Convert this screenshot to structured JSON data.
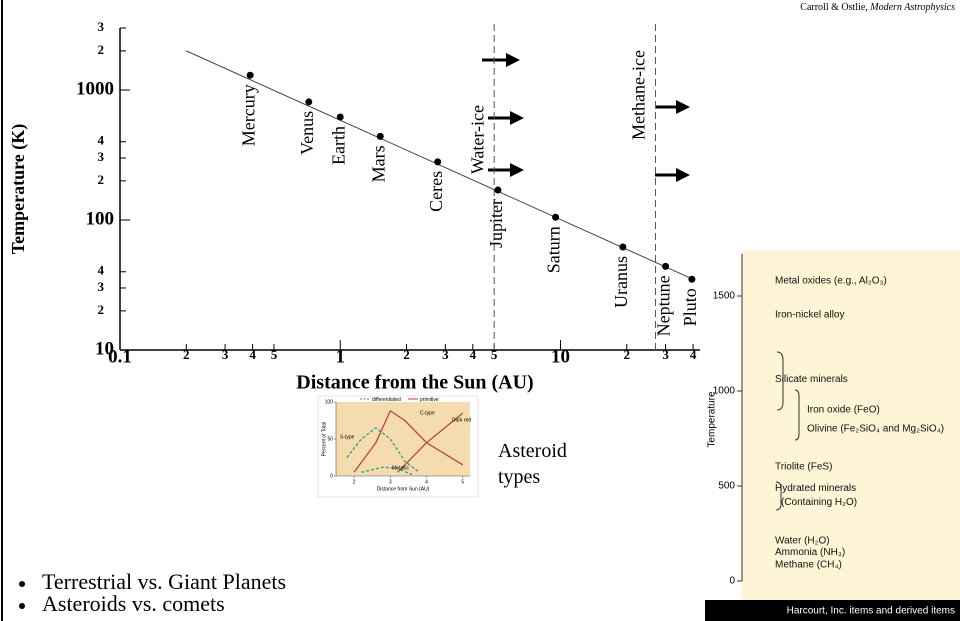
{
  "credit": {
    "authors": "Carroll & Ostlie,",
    "book": "Modern Astrophysics"
  },
  "chart_data": [
    {
      "type": "scatter",
      "x_label": "Distance from the Sun (AU)",
      "y_label": "Temperature (K)",
      "log_x": true,
      "log_y": true,
      "xlim": [
        0.1,
        43
      ],
      "ylim": [
        10,
        3000
      ],
      "xticks": [
        0.1,
        {
          "value": 0.2,
          "label": "2"
        },
        {
          "value": 0.3,
          "label": "3"
        },
        {
          "value": 0.4,
          "label": "4"
        },
        {
          "value": 0.5,
          "label": "5"
        },
        1,
        {
          "value": 2,
          "label": "2"
        },
        {
          "value": 3,
          "label": "3"
        },
        {
          "value": 4,
          "label": "4"
        },
        {
          "value": 5,
          "label": "5"
        },
        10,
        {
          "value": 20,
          "label": "2"
        },
        {
          "value": 30,
          "label": "3"
        },
        {
          "value": 40,
          "label": "4"
        }
      ],
      "yticks": [
        10,
        {
          "value": 20,
          "label": "2"
        },
        {
          "value": 30,
          "label": "3"
        },
        {
          "value": 40,
          "label": "4"
        },
        100,
        {
          "value": 200,
          "label": "2"
        },
        {
          "value": 300,
          "label": "3"
        },
        {
          "value": 400,
          "label": "4"
        },
        1000,
        {
          "value": 2000,
          "label": "2"
        },
        {
          "value": 3000,
          "label": "3"
        }
      ],
      "x": [
        0.39,
        0.72,
        1,
        1.52,
        2.77,
        5.2,
        9.5,
        19.2,
        30,
        39.5
      ],
      "values": [
        1300,
        810,
        620,
        440,
        280,
        170,
        105,
        62,
        44,
        35
      ],
      "point_labels": [
        "Mercury",
        "Venus",
        "Earth",
        "Mars",
        "Ceres",
        "Jupiter",
        "Saturn",
        "Uranus",
        "Neptune",
        "Pluto"
      ],
      "color": "#000000",
      "fit": {
        "x": [
          0.2,
          40
        ],
        "values": [
          2000,
          35
        ]
      },
      "boundaries": [
        {
          "label": "Water-ice",
          "x": 5
        },
        {
          "label": "Methane-ice",
          "x": 27
        }
      ]
    },
    {
      "type": "line",
      "x_label": "Distance from Sun (AU)",
      "y_label": "Percent of Total",
      "xlim": [
        1.5,
        5.2
      ],
      "ylim": [
        0,
        100
      ],
      "xticks": [
        2,
        3,
        4,
        5
      ],
      "yticks": [
        0,
        50,
        100
      ],
      "legend": [
        {
          "name": "differentiated",
          "color": "#2a9d8f",
          "dashed": true
        },
        {
          "name": "primitive",
          "color": "#b5473a",
          "dashed": false
        }
      ],
      "curves": [
        {
          "label": "S-type",
          "group": 0,
          "x": [
            1.8,
            2.2,
            2.6,
            3.0,
            3.4,
            3.8
          ],
          "values": [
            25,
            50,
            65,
            50,
            20,
            5
          ]
        },
        {
          "label": "C-type",
          "group": 1,
          "x": [
            2.0,
            2.6,
            3.0,
            3.4,
            4.0,
            5.0
          ],
          "values": [
            5,
            45,
            88,
            75,
            45,
            15
          ]
        },
        {
          "label": "Dark red",
          "group": 1,
          "x": [
            3.2,
            4.0,
            5.0
          ],
          "values": [
            5,
            45,
            85
          ]
        },
        {
          "label": "Metallic",
          "group": 0,
          "x": [
            2.2,
            2.8,
            3.2,
            3.6
          ],
          "values": [
            5,
            12,
            10,
            2
          ]
        }
      ],
      "caption": "Asteroid types"
    },
    {
      "type": "scale",
      "y_label": "Temperature",
      "ylim": [
        0,
        1700
      ],
      "yticks": [
        0,
        500,
        1000,
        1500
      ],
      "items": [
        {
          "label": [
            "Metal oxides (e.g., Al₂O₃)"
          ],
          "temperature": 1580
        },
        {
          "label": [
            "Iron-nickel alloy"
          ],
          "temperature": 1400
        },
        {
          "label": [
            "Silicate minerals"
          ],
          "temperature": 1060
        },
        {
          "label": [
            "Iron oxide (FeO)"
          ],
          "temperature": 900
        },
        {
          "label": [
            "Olivine (Fe₂SiO₄ and Mg₂SiO₄)"
          ],
          "temperature": 800
        },
        {
          "label": [
            "Triolite (FeS)"
          ],
          "temperature": 600
        },
        {
          "label": [
            "Hydrated minerals",
            "(Containing H₂O)"
          ],
          "temperature": 450
        },
        {
          "label": [
            "Water (H₂O)"
          ],
          "temperature": 210
        },
        {
          "label": [
            "Ammonia (NH₃)"
          ],
          "temperature": 150
        },
        {
          "label": [
            "Methane (CH₄)"
          ],
          "temperature": 85
        }
      ],
      "footer": "Harcourt, Inc. items and derived items"
    }
  ],
  "bullets": [
    "Terrestrial vs. Giant Planets",
    "Asteroids vs. comets"
  ]
}
